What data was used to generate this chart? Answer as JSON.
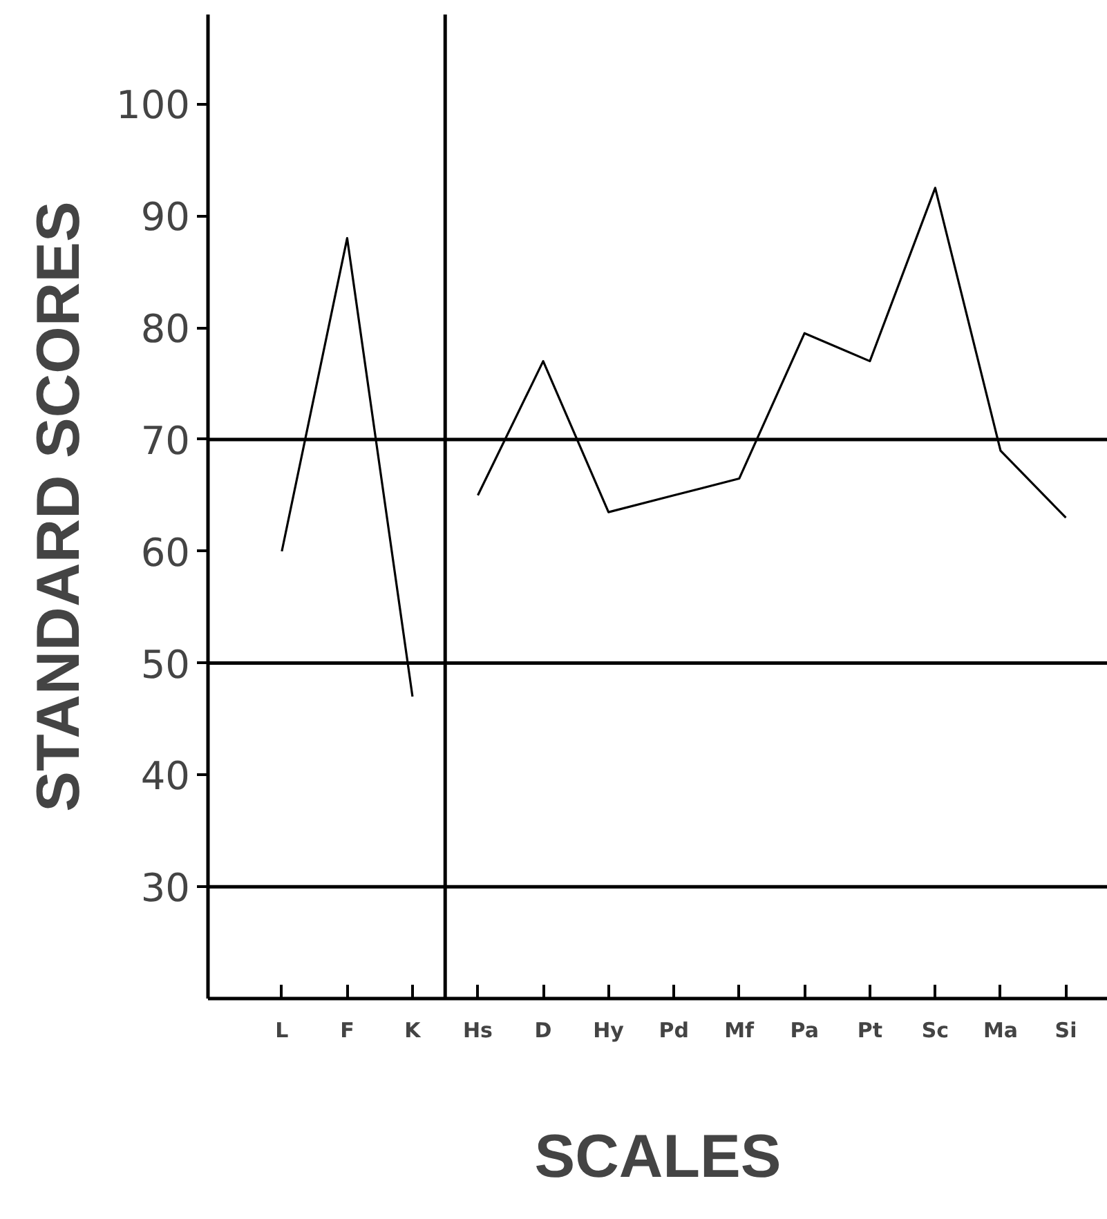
{
  "chart_data": {
    "type": "line",
    "xlabel": "SCALES",
    "ylabel": "STANDARD SCORES",
    "categories": [
      "L",
      "F",
      "K",
      "Hs",
      "D",
      "Hy",
      "Pd",
      "Mf",
      "Pa",
      "Pt",
      "Sc",
      "Ma",
      "Si"
    ],
    "ylim": [
      20,
      108
    ],
    "yticks": [
      30,
      40,
      50,
      60,
      70,
      80,
      90,
      100
    ],
    "series": [
      {
        "color": "#000000",
        "values": [
          60,
          88,
          47,
          null,
          null,
          null,
          null,
          null,
          null,
          null,
          null,
          null,
          null
        ]
      },
      {
        "color": "#000000",
        "values": [
          null,
          null,
          null,
          65,
          77,
          63.5,
          65,
          66.5,
          79.5,
          77,
          92.5,
          69,
          63
        ]
      }
    ],
    "ref_lines": [
      {
        "axis": "y",
        "value": 70,
        "color": "#000000"
      },
      {
        "axis": "y",
        "value": 50,
        "color": "#000000"
      },
      {
        "axis": "y",
        "value": 30,
        "color": "#000000"
      }
    ],
    "grid": false,
    "marker": "none",
    "line_style": "solid"
  }
}
